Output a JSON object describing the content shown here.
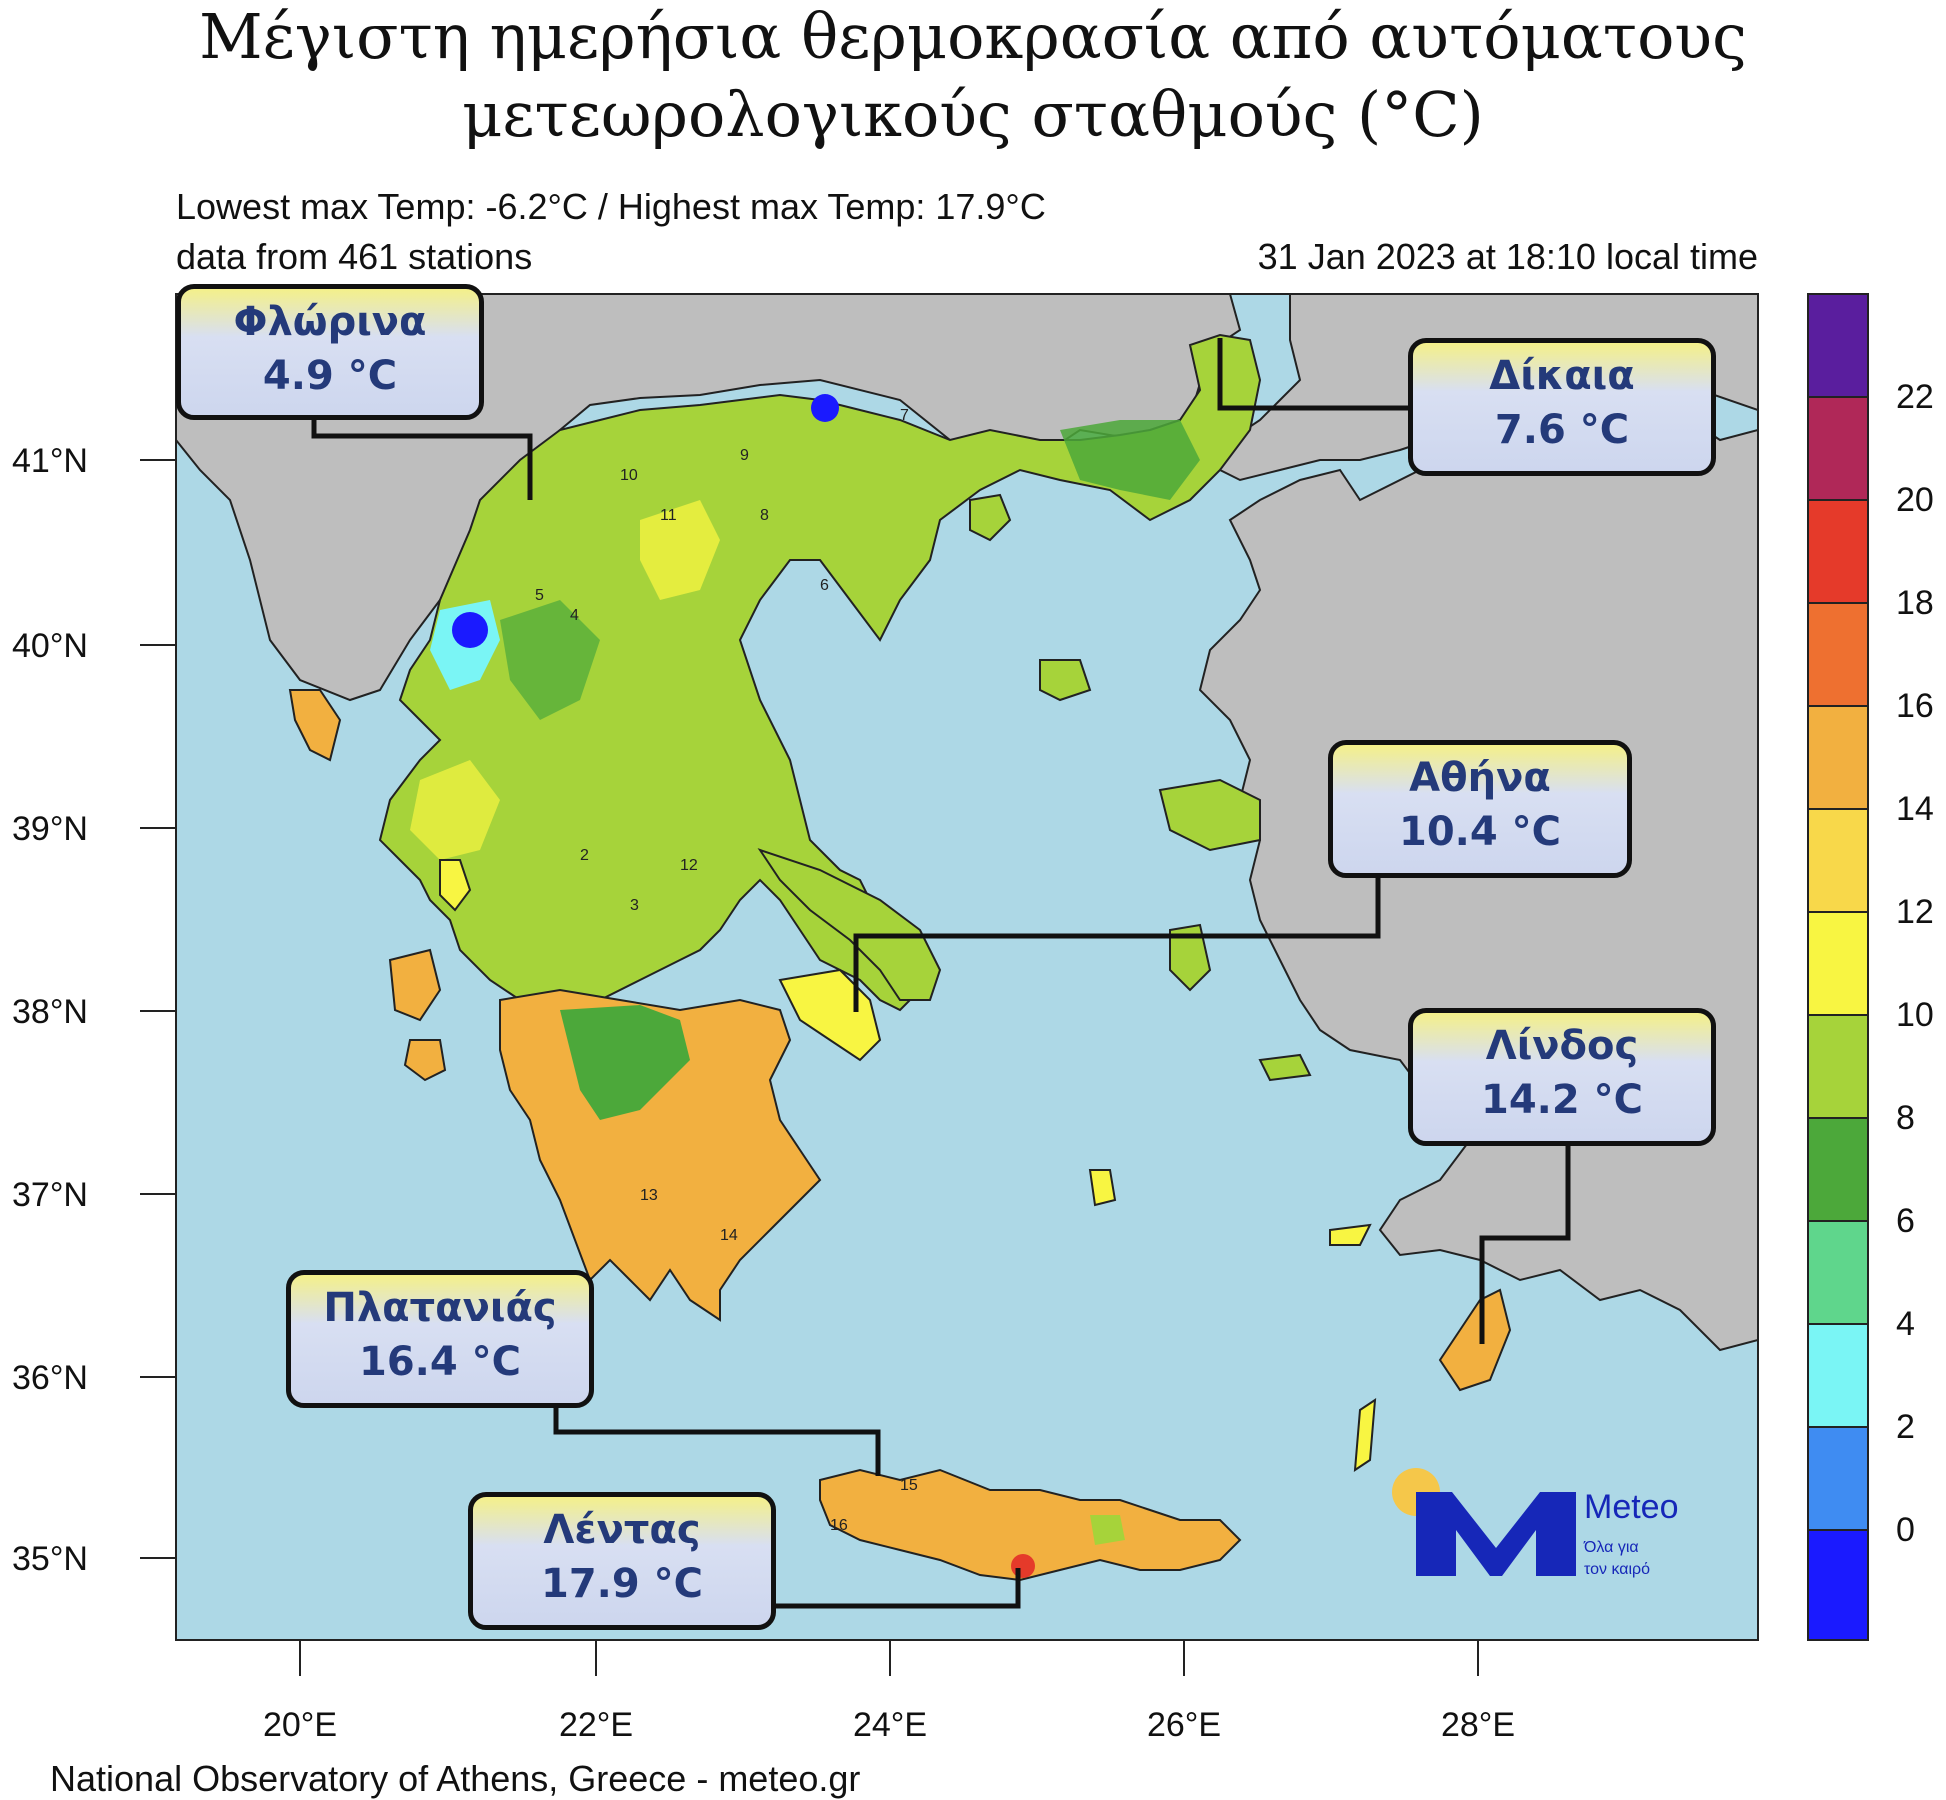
{
  "title": {
    "line1": "Μέγιστη ημερήσια θερμοκρασία από αυτόματους",
    "line2": "μετεωρολογικούς σταθμούς (°C)"
  },
  "header": {
    "extremes": "Lowest max Temp: -6.2°C / Highest max Temp: 17.9°C",
    "stations": "data from 461 stations",
    "timestamp": "31 Jan 2023 at 18:10 local time"
  },
  "axes": {
    "lat_labels": [
      "41°N",
      "40°N",
      "39°N",
      "38°N",
      "37°N",
      "36°N",
      "35°N"
    ],
    "lon_labels": [
      "20°E",
      "22°E",
      "24°E",
      "26°E",
      "28°E"
    ]
  },
  "colorbar": {
    "labels": [
      "22",
      "20",
      "18",
      "16",
      "14",
      "12",
      "10",
      "8",
      "6",
      "4",
      "2",
      "0"
    ],
    "colors": [
      "#5a1e9e",
      "#b02858",
      "#e53a2a",
      "#ee7030",
      "#f2b040",
      "#f8d84a",
      "#f8f542",
      "#a6d33a",
      "#4ca83a",
      "#5fd68c",
      "#7af5f5",
      "#3f8cf2",
      "#1a1aff"
    ]
  },
  "callouts": [
    {
      "name": "Φλώρινα",
      "value": "4.9 °C"
    },
    {
      "name": "Δίκαια",
      "value": "7.6 °C"
    },
    {
      "name": "Αθήνα",
      "value": "10.4 °C"
    },
    {
      "name": "Λίνδος",
      "value": "14.2 °C"
    },
    {
      "name": "Πλατανιάς",
      "value": "16.4 °C"
    },
    {
      "name": "Λέντας",
      "value": "17.9 °C"
    }
  ],
  "logo": {
    "brand": "Meteo",
    "tagline1": "Όλα για",
    "tagline2": "τον καιρό",
    "colors": {
      "sun": "#f5c74a",
      "mark": "#1627b8",
      "text": "#1627b8"
    }
  },
  "footer": "National Observatory of Athens, Greece - meteo.gr",
  "map_colors": {
    "sea": "#add8e6",
    "land_outside": "#bebebe",
    "green_light": "#a6d33a",
    "green_dark": "#4ca83a",
    "yellow": "#f8f542",
    "orange": "#f2b040"
  },
  "station_values": [
    "10",
    "11",
    "9",
    "8",
    "7",
    "6",
    "5",
    "4",
    "3",
    "2",
    "12",
    "13",
    "14",
    "15",
    "16"
  ]
}
